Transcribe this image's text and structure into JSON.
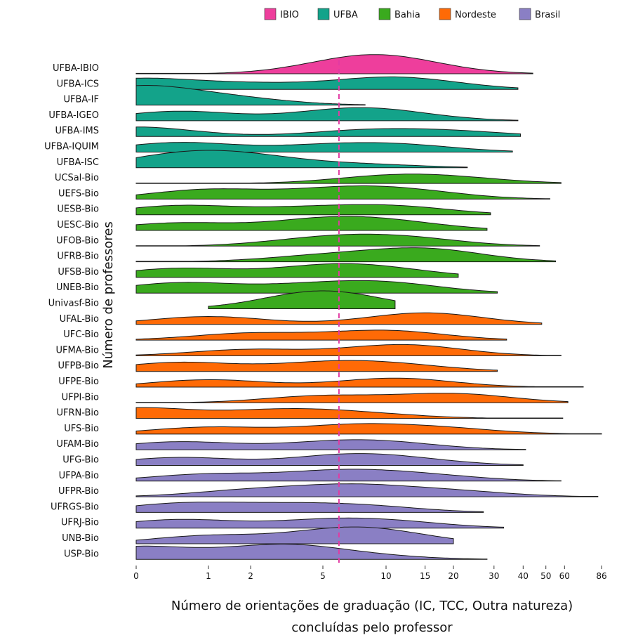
{
  "chart_data": {
    "type": "ridgeline",
    "title": "",
    "xlabel": "Número de orientações de graduação (IC, TCC, Outra natureza)",
    "xlabel_line2": "concluídas pelo professor",
    "ylabel": "Número de professores",
    "x_scale": "pseudo-log (log(x+1))",
    "xlim": [
      0,
      86
    ],
    "x_ticks": [
      0,
      1,
      2,
      5,
      10,
      15,
      20,
      30,
      40,
      50,
      60,
      86
    ],
    "reference_line": {
      "x": 6,
      "style": "dashed",
      "color": "#e23aa3"
    },
    "legend_position": "top-right",
    "legend": [
      {
        "name": "IBIO",
        "color": "#ee3e9c"
      },
      {
        "name": "UFBA",
        "color": "#13a38a"
      },
      {
        "name": "Bahia",
        "color": "#3aaa1e"
      },
      {
        "name": "Nordeste",
        "color": "#ff6a06"
      },
      {
        "name": "Brasil",
        "color": "#8a7fc4"
      }
    ],
    "series": [
      {
        "name": "UFBA-IBIO",
        "group": "IBIO",
        "xmin": 0,
        "xmax": 44,
        "peaks": [
          [
            7,
            0.95
          ],
          [
            11,
            1.0
          ]
        ]
      },
      {
        "name": "UFBA-ICS",
        "group": "UFBA",
        "xmin": 0,
        "xmax": 38,
        "peaks": [
          [
            0,
            1.0
          ],
          [
            2,
            0.5
          ],
          [
            9,
            0.7
          ],
          [
            14,
            0.55
          ]
        ]
      },
      {
        "name": "UFBA-IF",
        "group": "UFBA",
        "xmin": 0,
        "xmax": 8,
        "peaks": [
          [
            0,
            1.7
          ],
          [
            1.5,
            0.6
          ]
        ]
      },
      {
        "name": "UFBA-IGEO",
        "group": "UFBA",
        "xmin": 0,
        "xmax": 38,
        "peaks": [
          [
            0.5,
            0.9
          ],
          [
            6,
            0.7
          ],
          [
            10,
            0.65
          ]
        ]
      },
      {
        "name": "UFBA-IMS",
        "group": "UFBA",
        "xmin": 0,
        "xmax": 39,
        "peaks": [
          [
            0,
            0.9
          ],
          [
            8,
            0.55
          ],
          [
            20,
            0.45
          ]
        ]
      },
      {
        "name": "UFBA-IQUIM",
        "group": "UFBA",
        "xmin": 0,
        "xmax": 36,
        "peaks": [
          [
            0.5,
            0.9
          ],
          [
            5,
            0.55
          ],
          [
            12,
            0.6
          ]
        ]
      },
      {
        "name": "UFBA-ISC",
        "group": "UFBA",
        "xmin": 0,
        "xmax": 23,
        "peaks": [
          [
            0.5,
            1.1
          ],
          [
            2,
            0.9
          ],
          [
            8,
            0.3
          ]
        ]
      },
      {
        "name": "UCSal-Bio",
        "group": "Bahia",
        "xmin": 0,
        "xmax": 58,
        "peaks": [
          [
            10,
            0.6
          ],
          [
            20,
            0.45
          ]
        ]
      },
      {
        "name": "UEFS-Bio",
        "group": "Bahia",
        "xmin": 0,
        "xmax": 52,
        "peaks": [
          [
            1,
            0.9
          ],
          [
            6,
            0.85
          ],
          [
            13,
            0.65
          ]
        ]
      },
      {
        "name": "UESB-Bio",
        "group": "Bahia",
        "xmin": 0,
        "xmax": 29,
        "peaks": [
          [
            0.5,
            0.85
          ],
          [
            4,
            0.55
          ],
          [
            11,
            0.75
          ]
        ]
      },
      {
        "name": "UESC-Bio",
        "group": "Bahia",
        "xmin": 0,
        "xmax": 28,
        "peaks": [
          [
            0.5,
            0.7
          ],
          [
            5,
            0.95
          ],
          [
            11,
            0.65
          ]
        ]
      },
      {
        "name": "UFOB-Bio",
        "group": "Bahia",
        "xmin": 0,
        "xmax": 47,
        "peaks": [
          [
            5,
            0.7
          ],
          [
            12,
            0.75
          ]
        ]
      },
      {
        "name": "UFRB-Bio",
        "group": "Bahia",
        "xmin": 0,
        "xmax": 55,
        "peaks": [
          [
            5,
            0.55
          ],
          [
            15,
            1.2
          ]
        ]
      },
      {
        "name": "UFSB-Bio",
        "group": "Bahia",
        "xmin": 0,
        "xmax": 21,
        "peaks": [
          [
            0.5,
            0.85
          ],
          [
            5,
            0.9
          ],
          [
            10,
            0.6
          ]
        ]
      },
      {
        "name": "UNEB-Bio",
        "group": "Bahia",
        "xmin": 0,
        "xmax": 31,
        "peaks": [
          [
            0.5,
            0.95
          ],
          [
            4,
            0.6
          ],
          [
            10,
            0.9
          ]
        ]
      },
      {
        "name": "Univasf-Bio",
        "group": "Bahia",
        "xmin": 1,
        "xmax": 11,
        "peaks": [
          [
            5,
            1.7
          ]
        ]
      },
      {
        "name": "UFAL-Bio",
        "group": "Nordeste",
        "xmin": 0,
        "xmax": 48,
        "peaks": [
          [
            1,
            0.75
          ],
          [
            15,
            1.1
          ]
        ]
      },
      {
        "name": "UFC-Bio",
        "group": "Nordeste",
        "xmin": 0,
        "xmax": 34,
        "peaks": [
          [
            2,
            0.65
          ],
          [
            10,
            0.9
          ]
        ]
      },
      {
        "name": "UFMA-Bio",
        "group": "Nordeste",
        "xmin": 0,
        "xmax": 58,
        "peaks": [
          [
            2,
            0.6
          ],
          [
            12,
            1.05
          ]
        ]
      },
      {
        "name": "UFPB-Bio",
        "group": "Nordeste",
        "xmin": 0,
        "xmax": 31,
        "peaks": [
          [
            0.5,
            0.85
          ],
          [
            5,
            0.7
          ],
          [
            11,
            0.55
          ]
        ]
      },
      {
        "name": "UFPE-Bio",
        "group": "Nordeste",
        "xmin": 0,
        "xmax": 72,
        "peaks": [
          [
            1,
            0.7
          ],
          [
            11,
            0.85
          ]
        ]
      },
      {
        "name": "UFPI-Bio",
        "group": "Nordeste",
        "xmin": 0,
        "xmax": 62,
        "peaks": [
          [
            5,
            0.65
          ],
          [
            20,
            0.85
          ]
        ]
      },
      {
        "name": "UFRN-Bio",
        "group": "Nordeste",
        "xmin": 0,
        "xmax": 59,
        "peaks": [
          [
            0,
            1.0
          ],
          [
            3,
            0.75
          ],
          [
            8,
            0.4
          ]
        ]
      },
      {
        "name": "UFS-Bio",
        "group": "Nordeste",
        "xmin": 0,
        "xmax": 86,
        "peaks": [
          [
            1,
            0.65
          ],
          [
            7,
            0.8
          ],
          [
            18,
            0.5
          ]
        ]
      },
      {
        "name": "UFAM-Bio",
        "group": "Brasil",
        "xmin": 0,
        "xmax": 41,
        "peaks": [
          [
            0.5,
            0.75
          ],
          [
            5,
            0.5
          ],
          [
            10,
            0.6
          ]
        ]
      },
      {
        "name": "UFG-Bio",
        "group": "Brasil",
        "xmin": 0,
        "xmax": 40,
        "peaks": [
          [
            0.5,
            0.75
          ],
          [
            6,
            0.8
          ],
          [
            12,
            0.5
          ]
        ]
      },
      {
        "name": "UFPA-Bio",
        "group": "Brasil",
        "xmin": 0,
        "xmax": 58,
        "peaks": [
          [
            1,
            0.65
          ],
          [
            6,
            0.9
          ],
          [
            15,
            0.5
          ]
        ]
      },
      {
        "name": "UFPR-Bio",
        "group": "Brasil",
        "xmin": 0,
        "xmax": 83,
        "peaks": [
          [
            2,
            0.6
          ],
          [
            7,
            1.0
          ],
          [
            20,
            0.5
          ]
        ]
      },
      {
        "name": "UFRGS-Bio",
        "group": "Brasil",
        "xmin": 0,
        "xmax": 27,
        "peaks": [
          [
            0.5,
            0.8
          ],
          [
            3,
            0.6
          ],
          [
            8,
            0.55
          ]
        ]
      },
      {
        "name": "UFRJ-Bio",
        "group": "Brasil",
        "xmin": 0,
        "xmax": 33,
        "peaks": [
          [
            0.5,
            0.8
          ],
          [
            5,
            0.65
          ],
          [
            11,
            0.5
          ]
        ]
      },
      {
        "name": "UNB-Bio",
        "group": "Brasil",
        "xmin": 0,
        "xmax": 20,
        "peaks": [
          [
            1,
            0.75
          ],
          [
            6,
            1.0
          ],
          [
            10,
            0.7
          ]
        ]
      },
      {
        "name": "USP-Bio",
        "group": "Brasil",
        "xmin": 0,
        "xmax": 28,
        "peaks": [
          [
            0,
            1.2
          ],
          [
            3,
            1.3
          ],
          [
            8,
            0.3
          ]
        ]
      }
    ]
  }
}
